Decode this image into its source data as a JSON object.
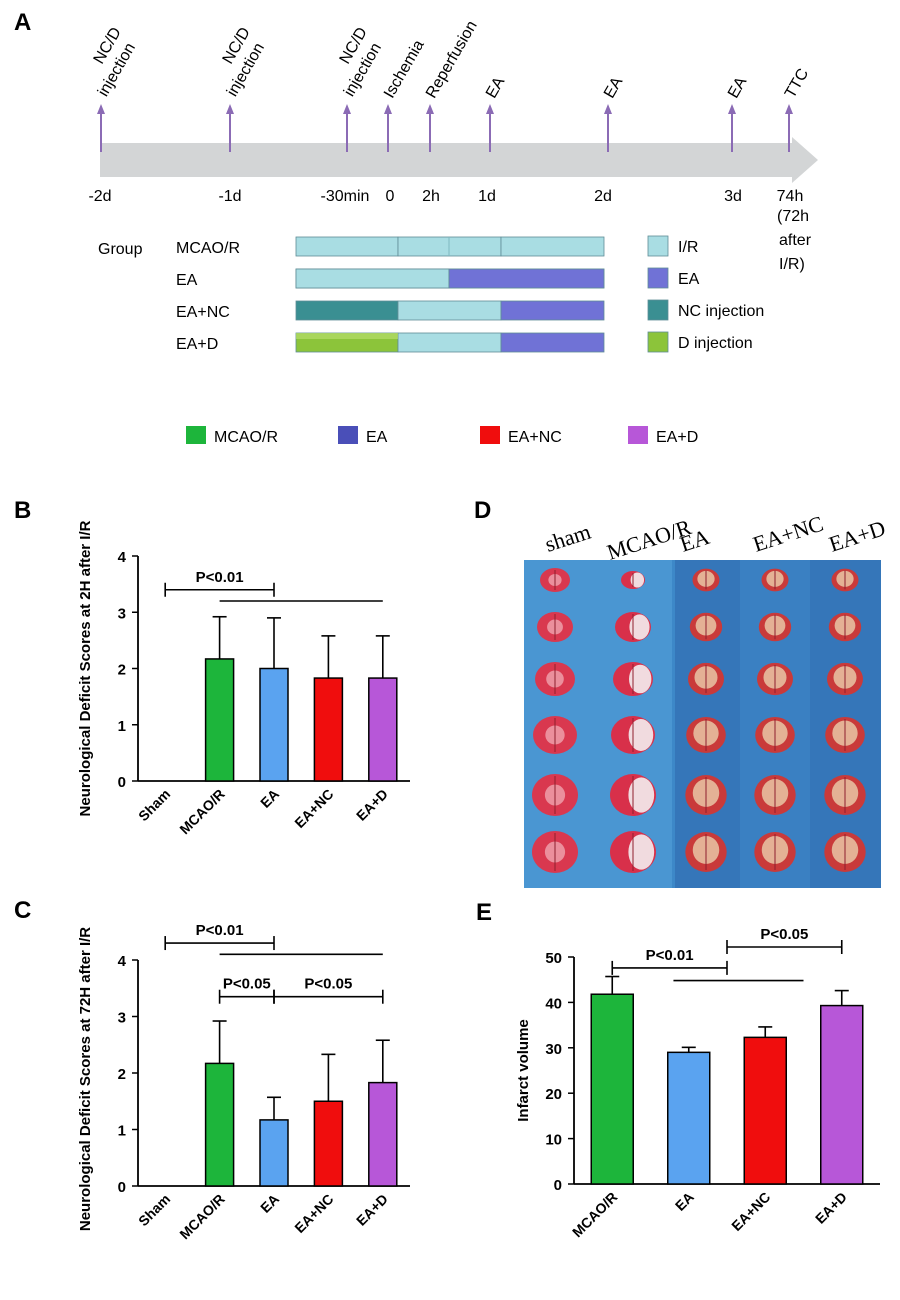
{
  "panels": {
    "a": "A",
    "b": "B",
    "c": "C",
    "d": "D",
    "e": "E"
  },
  "colors": {
    "mcao": "#1db53b",
    "ea": "#5aa3f0",
    "eanc": "#f00d0d",
    "ead": "#b757d8",
    "legend_ea": "#4a4fb8",
    "ir": "#a9dde3",
    "ea_bar": "#7072d6",
    "nc_inj": "#3a8f92",
    "d_inj": "#8cc43a",
    "arrow": "#8b6bb5",
    "timeline": "#d3d5d6"
  },
  "timeline": {
    "events": [
      {
        "top": "NC/D",
        "bottom": "injection",
        "tick": "-2d"
      },
      {
        "top": "NC/D",
        "bottom": "injection",
        "tick": "-1d"
      },
      {
        "top": "NC/D",
        "bottom": "injection",
        "tick": "-30min"
      },
      {
        "top": "Ischemia",
        "bottom": "",
        "tick": "0"
      },
      {
        "top": "Reperfusion",
        "bottom": "",
        "tick": "2h"
      },
      {
        "top": "EA",
        "bottom": "",
        "tick": "1d"
      },
      {
        "top": "EA",
        "bottom": "",
        "tick": "2d"
      },
      {
        "top": "EA",
        "bottom": "",
        "tick": "3d"
      },
      {
        "top": "TTC",
        "bottom": "",
        "tick": "74h"
      }
    ],
    "note_lines": [
      "(72h",
      "after",
      "I/R)"
    ]
  },
  "groups": {
    "header": "Group",
    "rows": [
      {
        "name": "MCAO/R",
        "segments": [
          "ir",
          "ir",
          "ir"
        ]
      },
      {
        "name": "EA",
        "segments": [
          "ir",
          "ea",
          "ea"
        ]
      },
      {
        "name": "EA+NC",
        "segments": [
          "nc",
          "ir",
          "ea"
        ]
      },
      {
        "name": "EA+D",
        "segments": [
          "d",
          "ir",
          "ea"
        ]
      }
    ],
    "legend": [
      {
        "key": "ir",
        "label": "I/R"
      },
      {
        "key": "ea",
        "label": "EA"
      },
      {
        "key": "nc",
        "label": "NC injection"
      },
      {
        "key": "d",
        "label": "D injection"
      }
    ]
  },
  "legend": [
    {
      "label": "MCAO/R",
      "color": "#1db53b"
    },
    {
      "label": "EA",
      "color": "#4a4fb8"
    },
    {
      "label": "EA+NC",
      "color": "#f00d0d"
    },
    {
      "label": "EA+D",
      "color": "#b757d8"
    }
  ],
  "photo": {
    "columns": [
      "sham",
      "MCAO/R",
      "EA",
      "EA+NC",
      "EA+D"
    ],
    "rows": 6
  },
  "chart_data": [
    {
      "id": "B",
      "type": "bar",
      "ylabel": "Neurological Deficit Scores at 2H after I/R",
      "categories": [
        "Sham",
        "MCAO/R",
        "EA",
        "EA+NC",
        "EA+D"
      ],
      "values": [
        0,
        2.17,
        2.0,
        1.83,
        1.83
      ],
      "errors": [
        0,
        0.75,
        0.9,
        0.75,
        0.75
      ],
      "ylim": [
        0,
        4
      ],
      "yticks": [
        0,
        1,
        2,
        3,
        4
      ],
      "annotations": [
        {
          "text": "P<0.01",
          "from": 0,
          "to": 2,
          "level": 3.4
        },
        {
          "text": "",
          "from": 1,
          "to": 4,
          "level": 3.2
        }
      ]
    },
    {
      "id": "C",
      "type": "bar",
      "ylabel": "Neurological Deficit Scores at 72H after I/R",
      "categories": [
        "Sham",
        "MCAO/R",
        "EA",
        "EA+NC",
        "EA+D"
      ],
      "values": [
        0,
        2.17,
        1.17,
        1.5,
        1.83
      ],
      "errors": [
        0,
        0.75,
        0.4,
        0.83,
        0.75
      ],
      "ylim": [
        0,
        4
      ],
      "yticks": [
        0,
        1,
        2,
        3,
        4
      ],
      "annotations": [
        {
          "text": "P<0.01",
          "from": 0,
          "to": 2,
          "level": 4.3
        },
        {
          "text": "",
          "from": 1,
          "to": 4,
          "level": 4.1
        },
        {
          "text": "P<0.05",
          "from": 1,
          "to": 2,
          "level": 3.35
        },
        {
          "text": "P<0.05",
          "from": 2,
          "to": 4,
          "level": 3.35
        }
      ]
    },
    {
      "id": "E",
      "type": "bar",
      "ylabel": "Infarct volume",
      "categories": [
        "MCAO/R",
        "EA",
        "EA+NC",
        "EA+D"
      ],
      "values": [
        41.8,
        29.0,
        32.3,
        39.3
      ],
      "errors": [
        3.9,
        1.1,
        2.3,
        3.3
      ],
      "ylim": [
        0,
        50
      ],
      "yticks": [
        0,
        10,
        20,
        30,
        40,
        50
      ],
      "annotations": [
        {
          "text": "P<0.01",
          "from": 0,
          "to": 1.5,
          "level": 47.6
        },
        {
          "text": "",
          "from": 0.8,
          "to": 2.5,
          "level": 44.8
        },
        {
          "text": "P<0.05",
          "from": 1.5,
          "to": 3,
          "level": 52.2
        }
      ]
    }
  ]
}
